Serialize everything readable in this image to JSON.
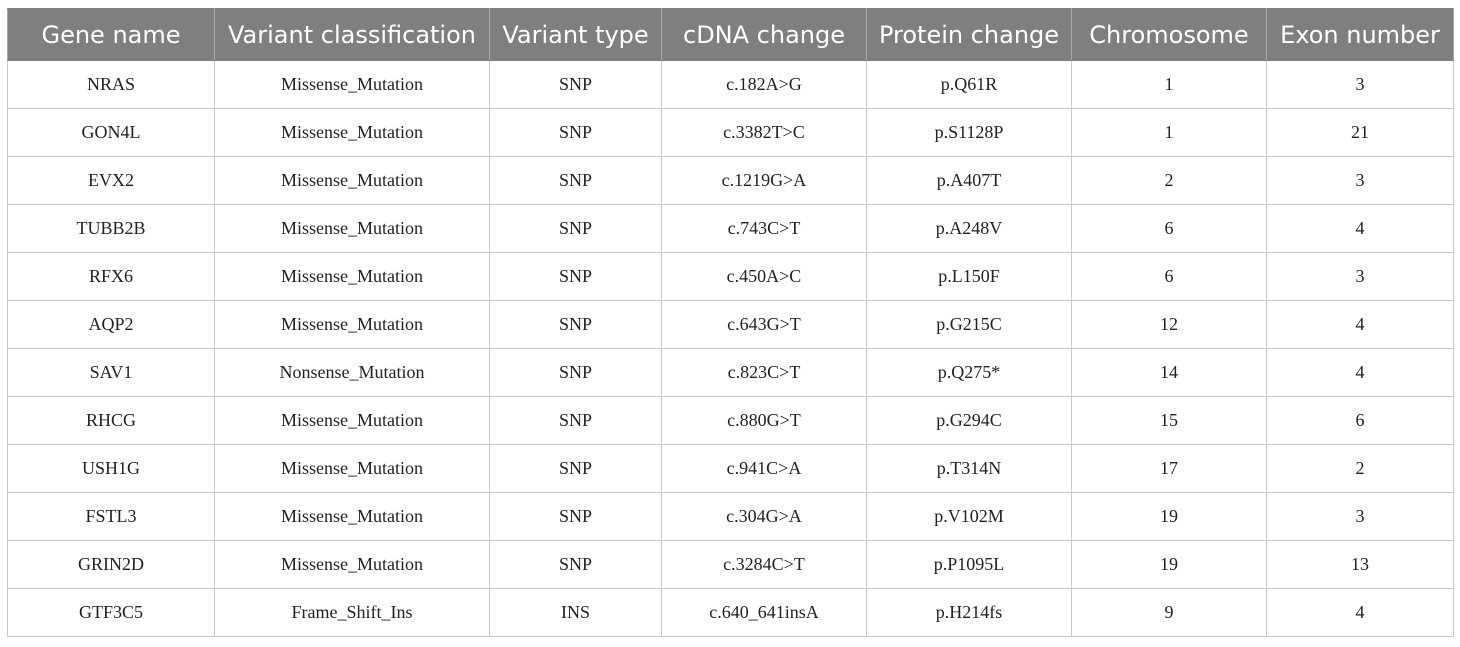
{
  "table": {
    "headers": [
      "Gene name",
      "Variant classification",
      "Variant type",
      "cDNA change",
      "Protein change",
      "Chromosome",
      "Exon number"
    ],
    "rows": [
      [
        "NRAS",
        "Missense_Mutation",
        "SNP",
        "c.182A>G",
        "p.Q61R",
        "1",
        "3"
      ],
      [
        "GON4L",
        "Missense_Mutation",
        "SNP",
        "c.3382T>C",
        "p.S1128P",
        "1",
        "21"
      ],
      [
        "EVX2",
        "Missense_Mutation",
        "SNP",
        "c.1219G>A",
        "p.A407T",
        "2",
        "3"
      ],
      [
        "TUBB2B",
        "Missense_Mutation",
        "SNP",
        "c.743C>T",
        "p.A248V",
        "6",
        "4"
      ],
      [
        "RFX6",
        "Missense_Mutation",
        "SNP",
        "c.450A>C",
        "p.L150F",
        "6",
        "3"
      ],
      [
        "AQP2",
        "Missense_Mutation",
        "SNP",
        "c.643G>T",
        "p.G215C",
        "12",
        "4"
      ],
      [
        "SAV1",
        "Nonsense_Mutation",
        "SNP",
        "c.823C>T",
        "p.Q275*",
        "14",
        "4"
      ],
      [
        "RHCG",
        "Missense_Mutation",
        "SNP",
        "c.880G>T",
        "p.G294C",
        "15",
        "6"
      ],
      [
        "USH1G",
        "Missense_Mutation",
        "SNP",
        "c.941C>A",
        "p.T314N",
        "17",
        "2"
      ],
      [
        "FSTL3",
        "Missense_Mutation",
        "SNP",
        "c.304G>A",
        "p.V102M",
        "19",
        "3"
      ],
      [
        "GRIN2D",
        "Missense_Mutation",
        "SNP",
        "c.3284C>T",
        "p.P1095L",
        "19",
        "13"
      ],
      [
        "GTF3C5",
        "Frame_Shift_Ins",
        "INS",
        "c.640_641insA",
        "p.H214fs",
        "9",
        "4"
      ]
    ]
  }
}
